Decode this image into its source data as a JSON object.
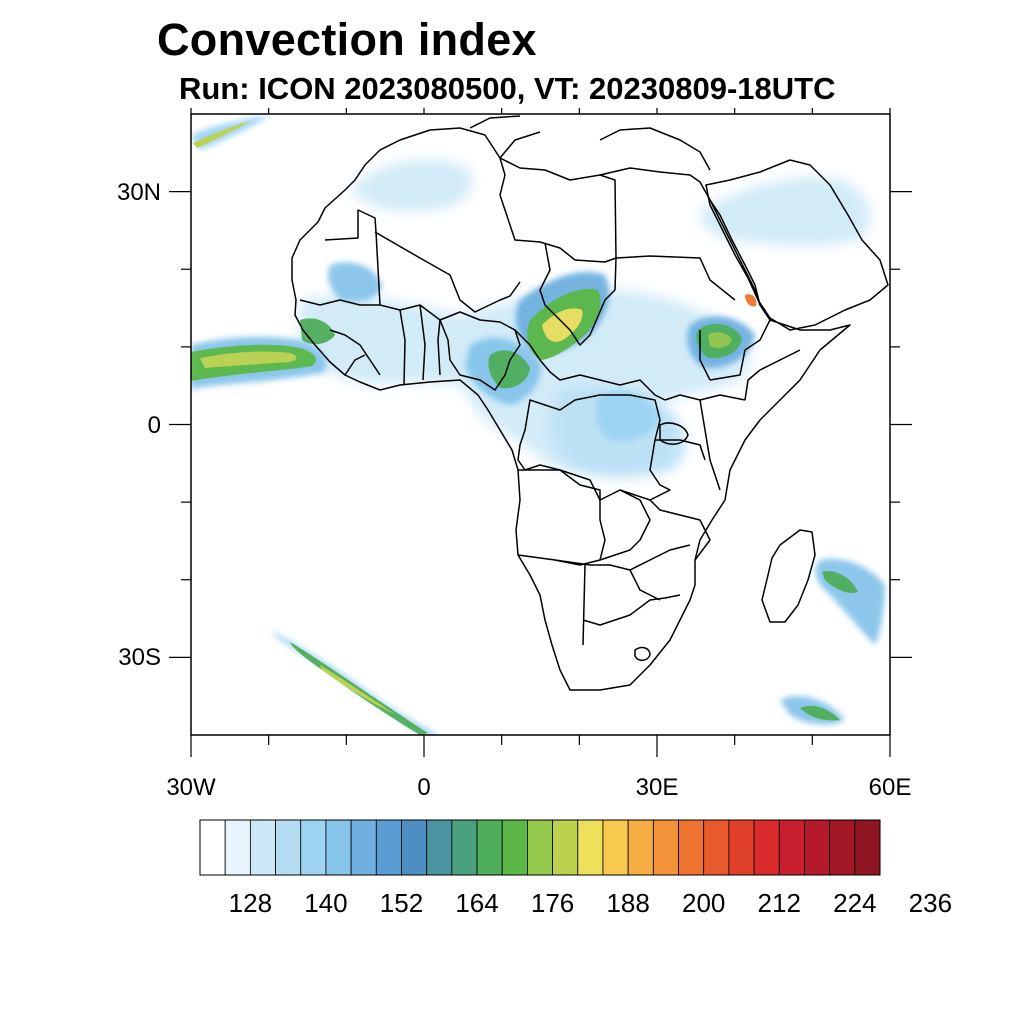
{
  "header": {
    "title": "Convection index",
    "subtitle": "Run: ICON 2023080500,  VT: 20230809-18UTC"
  },
  "map": {
    "projection": "cylindrical-equidistant",
    "lon_range": [
      -30,
      60
    ],
    "lat_range": [
      -40,
      40
    ],
    "lon_labels": [
      {
        "lon": -30,
        "text": "30W"
      },
      {
        "lon": 0,
        "text": "0"
      },
      {
        "lon": 30,
        "text": "30E"
      },
      {
        "lon": 60,
        "text": "60E"
      }
    ],
    "lat_labels": [
      {
        "lat": 30,
        "text": "30N"
      },
      {
        "lat": 0,
        "text": "0"
      },
      {
        "lat": -30,
        "text": "30S"
      }
    ],
    "coast_color": "#000000",
    "ocean_color": "#ffffff"
  },
  "colorbar": {
    "colors": [
      "#ffffff",
      "#e8f5fc",
      "#cde9f7",
      "#b5def5",
      "#9dd3f3",
      "#86c4ea",
      "#6fb0e0",
      "#5a9dd4",
      "#4e8fc3",
      "#4a93a0",
      "#4ba07e",
      "#4fae5a",
      "#5bb848",
      "#93c84a",
      "#bcd24c",
      "#ede15c",
      "#f8c94f",
      "#f6ad43",
      "#f39238",
      "#ee7430",
      "#e85a2b",
      "#e03f2a",
      "#d92b2c",
      "#c71f2d",
      "#b51a2a",
      "#a11726",
      "#8e1521"
    ],
    "tick_labels": [
      "128",
      "140",
      "152",
      "164",
      "176",
      "188",
      "200",
      "212",
      "224",
      "236"
    ]
  }
}
